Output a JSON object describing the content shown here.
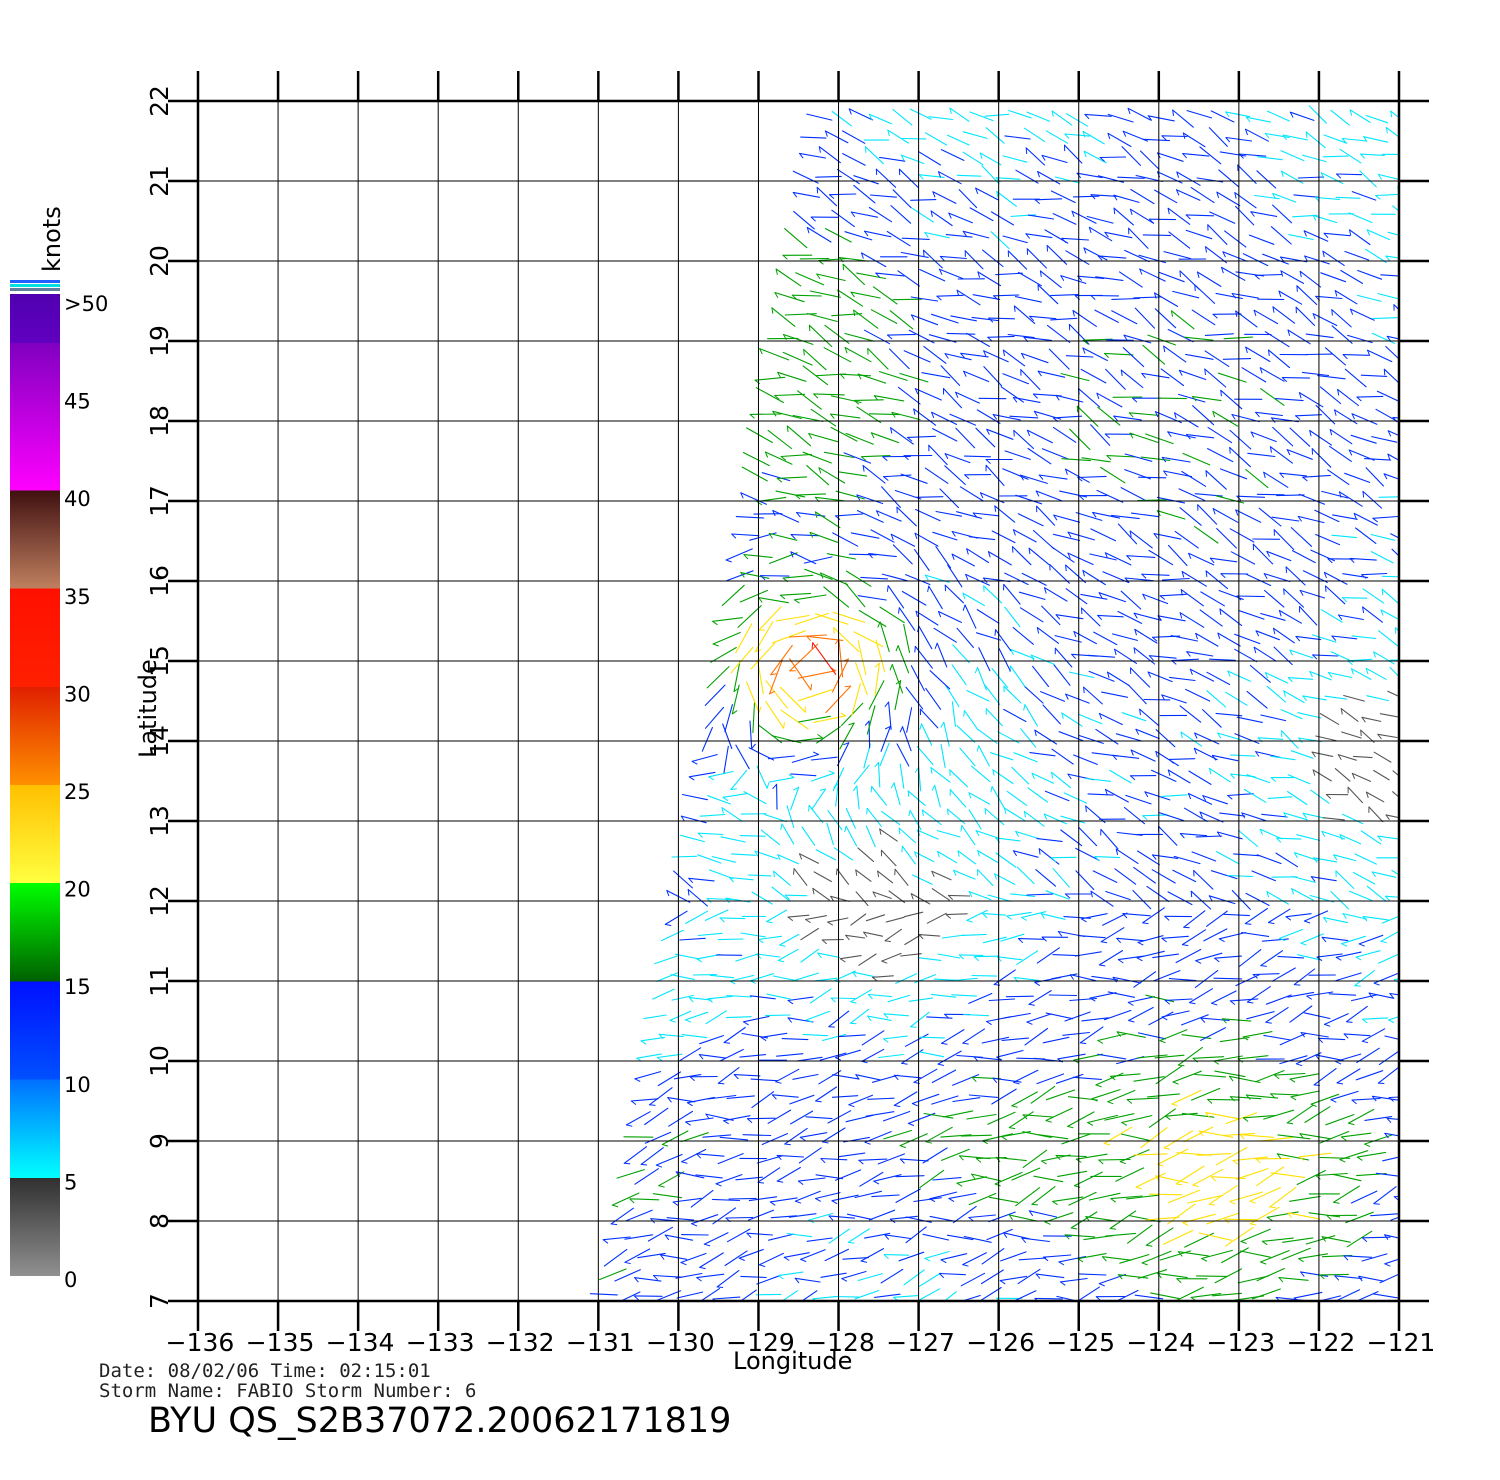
{
  "map": {
    "x_axis_label": "Longitude",
    "y_axis_label": "Latitude",
    "lon_ticks": [
      -136,
      -135,
      -134,
      -133,
      -132,
      -131,
      -130,
      -129,
      -128,
      -127,
      -126,
      -125,
      -124,
      -123,
      -122,
      -121
    ],
    "lat_ticks": [
      7,
      8,
      9,
      10,
      11,
      12,
      13,
      14,
      15,
      16,
      17,
      18,
      19,
      20,
      21,
      22
    ],
    "lon_range": [
      -136,
      -121
    ],
    "lat_range": [
      7,
      22
    ],
    "grid": true,
    "swath_longitudes": {
      "lat_7": -130.9,
      "lat_22": -128.2
    }
  },
  "colorbar": {
    "unit_label": "knots",
    "labels": [
      ">50",
      "45",
      "40",
      "35",
      "30",
      "25",
      "20",
      "15",
      "10",
      "5",
      "0"
    ],
    "colors": {
      "0_5": "#808080",
      "5_10": "#00e5ff",
      "10_15": "#0030ff",
      "15_20": "#00a000",
      "20_25": "#ffe000",
      "25_30": "#ff7000",
      "30_35": "#ff1000",
      "35_40": "#7a3a20",
      "40_50": "#e000e0",
      "over_50": "#6000c0"
    }
  },
  "info": {
    "line1": "Date: 08/02/06   Time: 02:15:01",
    "line2": "Storm  Name: FABIO   Storm  Number: 6",
    "product_id": "BYU  QS_S2B37072.20062171819"
  }
}
